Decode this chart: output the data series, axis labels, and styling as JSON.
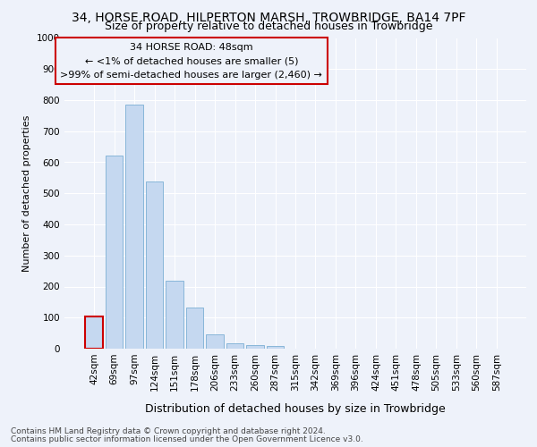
{
  "title": "34, HORSE ROAD, HILPERTON MARSH, TROWBRIDGE, BA14 7PF",
  "subtitle": "Size of property relative to detached houses in Trowbridge",
  "xlabel": "Distribution of detached houses by size in Trowbridge",
  "ylabel": "Number of detached properties",
  "categories": [
    "42sqm",
    "69sqm",
    "97sqm",
    "124sqm",
    "151sqm",
    "178sqm",
    "206sqm",
    "233sqm",
    "260sqm",
    "287sqm",
    "315sqm",
    "342sqm",
    "369sqm",
    "396sqm",
    "424sqm",
    "451sqm",
    "478sqm",
    "505sqm",
    "533sqm",
    "560sqm",
    "587sqm"
  ],
  "values": [
    103,
    622,
    787,
    537,
    220,
    133,
    45,
    18,
    12,
    10,
    0,
    0,
    0,
    0,
    0,
    0,
    0,
    0,
    0,
    0,
    0
  ],
  "bar_color": "#c5d8f0",
  "bar_edge_color": "#7bafd4",
  "highlight_bar_index": 0,
  "highlight_color": "#cc0000",
  "annotation_line1": "34 HORSE ROAD: 48sqm",
  "annotation_line2": "← <1% of detached houses are smaller (5)",
  "annotation_line3": ">99% of semi-detached houses are larger (2,460) →",
  "annotation_box_edge_color": "#cc0000",
  "ylim": [
    0,
    1000
  ],
  "yticks": [
    0,
    100,
    200,
    300,
    400,
    500,
    600,
    700,
    800,
    900,
    1000
  ],
  "footer_line1": "Contains HM Land Registry data © Crown copyright and database right 2024.",
  "footer_line2": "Contains public sector information licensed under the Open Government Licence v3.0.",
  "bg_color": "#eef2fa",
  "plot_bg_color": "#eef2fa",
  "grid_color": "#ffffff",
  "title_fontsize": 10,
  "subtitle_fontsize": 9,
  "ylabel_fontsize": 8,
  "xlabel_fontsize": 9,
  "tick_fontsize": 7.5,
  "annotation_fontsize": 8,
  "footer_fontsize": 6.5
}
